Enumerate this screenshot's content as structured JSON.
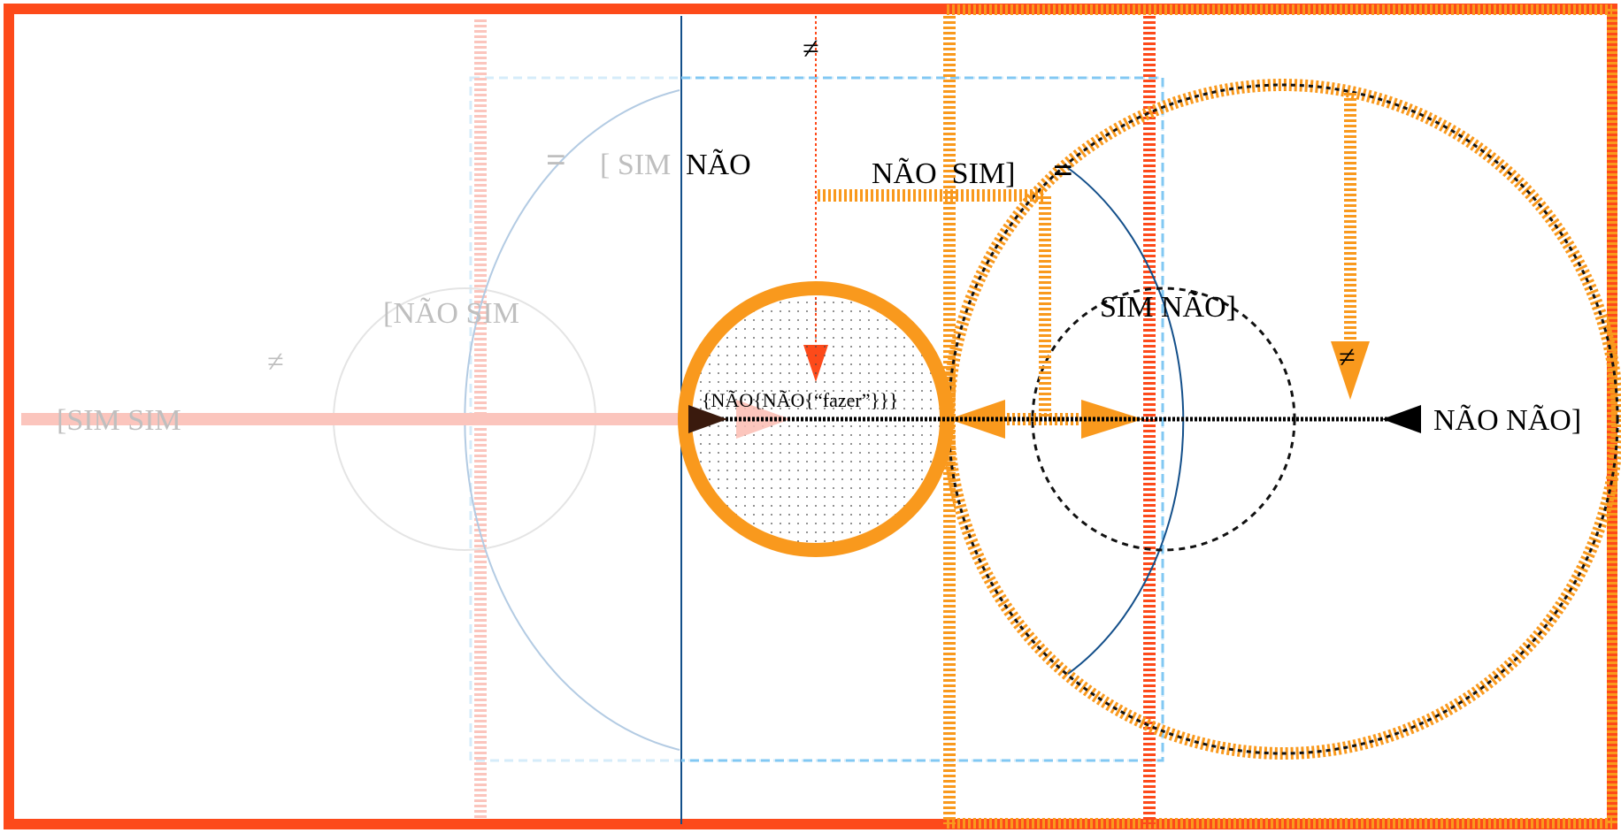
{
  "labels": {
    "sim_nao_top": "[ SIM",
    "nao_top": "NÃO",
    "nao_sim_right": "NÃO  SIM]",
    "nao_sim_left": "[NÃO SIM",
    "sim_sim": "[SIM SIM",
    "sim_nao_circle": "SIM NÃO]",
    "nao_nao": "NÃO NÃO]",
    "center_text": "{NÃO{NÃO{“fazer”}}}",
    "neq_top": "≠",
    "neq_left": "≠",
    "neq_right": "≠",
    "eq_left": "=",
    "eq_right": "="
  },
  "colors": {
    "red_orange": "#fd4a1a",
    "orange": "#f9991d",
    "pink": "#fbc5bd",
    "light_blue": "#b3cbe3",
    "blue": "#134f8a",
    "dash_blue": "#82c8f3",
    "black": "#000000",
    "gray": "#bfbfbf"
  }
}
